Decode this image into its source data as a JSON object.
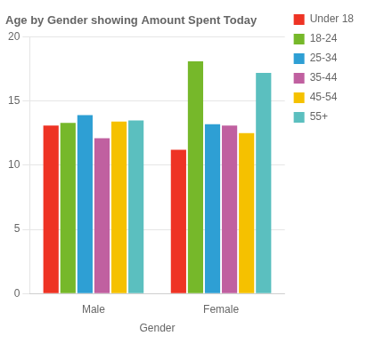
{
  "chart_data": {
    "type": "bar",
    "title": "Age by Gender showing Amount Spent Today",
    "xlabel": "Gender",
    "categories": [
      "Male",
      "Female"
    ],
    "series": [
      {
        "name": "Under 18",
        "color": "#ee3324",
        "values": [
          13.1,
          11.2
        ]
      },
      {
        "name": "18-24",
        "color": "#76b82a",
        "values": [
          13.3,
          18.1
        ]
      },
      {
        "name": "25-34",
        "color": "#2e9fd4",
        "values": [
          13.9,
          13.2
        ]
      },
      {
        "name": "35-44",
        "color": "#c060a0",
        "values": [
          12.1,
          13.1
        ]
      },
      {
        "name": "45-54",
        "color": "#f5c100",
        "values": [
          13.4,
          12.5
        ]
      },
      {
        "name": "55+",
        "color": "#5bbfbf",
        "values": [
          13.5,
          17.2
        ]
      }
    ],
    "ylim": [
      0,
      20
    ],
    "yticks": [
      0,
      5,
      10,
      15,
      20
    ],
    "grid": true,
    "legend": "right"
  }
}
